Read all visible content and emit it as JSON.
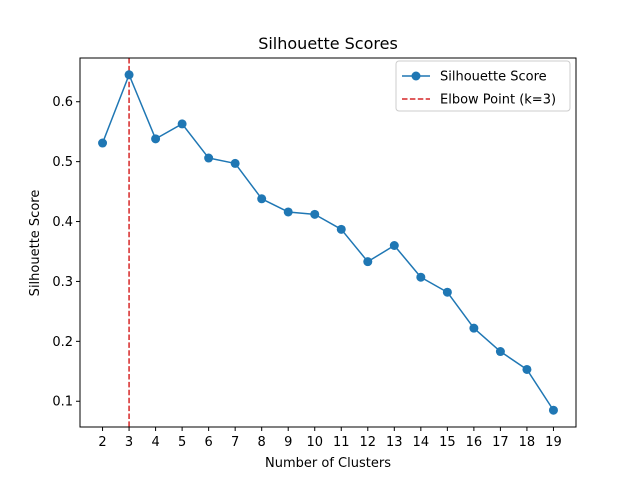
{
  "chart_data": {
    "type": "line",
    "title": "Silhouette Scores",
    "xlabel": "Number of Clusters",
    "ylabel": "Silhouette Score",
    "x": [
      2,
      3,
      4,
      5,
      6,
      7,
      8,
      9,
      10,
      11,
      12,
      13,
      14,
      15,
      16,
      17,
      18,
      19
    ],
    "series": [
      {
        "name": "Silhouette Score",
        "color": "#1f77b4",
        "marker": "circle",
        "values": [
          0.531,
          0.645,
          0.538,
          0.563,
          0.506,
          0.497,
          0.438,
          0.416,
          0.412,
          0.387,
          0.333,
          0.36,
          0.307,
          0.282,
          0.222,
          0.183,
          0.153,
          0.085
        ]
      }
    ],
    "reference_lines": [
      {
        "name": "Elbow Point (k=3)",
        "orientation": "vertical",
        "x": 3,
        "color": "#d62728",
        "style": "dashed"
      }
    ],
    "xticks": [
      2,
      3,
      4,
      5,
      6,
      7,
      8,
      9,
      10,
      11,
      12,
      13,
      14,
      15,
      16,
      17,
      18,
      19
    ],
    "yticks": [
      0.1,
      0.2,
      0.3,
      0.4,
      0.5,
      0.6
    ],
    "ytick_labels": [
      "0.1",
      "0.2",
      "0.3",
      "0.4",
      "0.5",
      "0.6"
    ],
    "xlim": [
      1.15,
      19.85
    ],
    "ylim": [
      0.057,
      0.673
    ],
    "grid": false,
    "legend_position": "upper right"
  }
}
